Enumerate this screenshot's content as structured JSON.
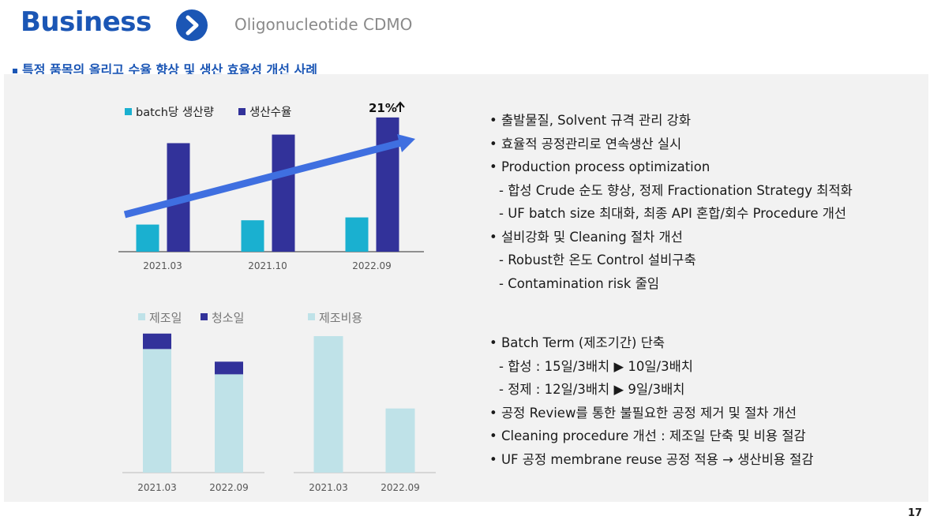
{
  "header": {
    "title": "Business",
    "subtitle": "Oligonucleotide CDMO"
  },
  "section_title": "특정 품목의 올리고 수율 향상 및 생산 효율성 개선 사례",
  "page_number": "17",
  "colors": {
    "brand": "#1b56b5",
    "cyan": "#1ab0d0",
    "navy": "#32329a",
    "light_cyan": "#bfe2e8",
    "arrow": "#3f6fe0"
  },
  "chart_data": [
    {
      "type": "bar",
      "categories": [
        "2021.03",
        "2021.10",
        "2022.09"
      ],
      "series": [
        {
          "name": "batch당 생산량",
          "values": [
            19,
            22,
            24
          ]
        },
        {
          "name": "생산수율",
          "values": [
            76,
            82,
            94
          ]
        }
      ],
      "ylim": [
        0,
        100
      ],
      "annotation": "21%",
      "trend_arrow": true
    },
    {
      "type": "bar",
      "stacked": true,
      "categories": [
        "2021.03",
        "2022.09"
      ],
      "series": [
        {
          "name": "제조일",
          "values": [
            88,
            70
          ]
        },
        {
          "name": "청소일",
          "values": [
            11,
            9
          ]
        }
      ],
      "ylim": [
        0,
        100
      ]
    },
    {
      "type": "bar",
      "categories": [
        "2021.03",
        "2022.09"
      ],
      "series": [
        {
          "name": "제조비용",
          "values": [
            100,
            47
          ]
        }
      ],
      "ylim": [
        0,
        100
      ]
    }
  ],
  "bullets_top": [
    {
      "text": "• 출발물질, Solvent 규격 관리 강화",
      "sub": false
    },
    {
      "text": "• 효율적 공정관리로 연속생산 실시",
      "sub": false
    },
    {
      "text": "• Production process optimization",
      "sub": false
    },
    {
      "text": "- 합성 Crude 순도 향상, 정제 Fractionation Strategy 최적화",
      "sub": true
    },
    {
      "text": "- UF batch size 최대화, 최종 API 혼합/회수 Procedure 개선",
      "sub": true
    },
    {
      "text": "• 설비강화 및 Cleaning 절차 개선",
      "sub": false
    },
    {
      "text": "- Robust한 온도 Control 설비구축",
      "sub": true
    },
    {
      "text": "- Contamination risk 줄임",
      "sub": true
    }
  ],
  "bullets_bottom": [
    {
      "text": "• Batch Term (제조기간) 단축",
      "sub": false
    },
    {
      "text": "- 합성 : 15일/3배치 ▶ 10일/3배치",
      "sub": true
    },
    {
      "text": "- 정제 : 12일/3배치 ▶ 9일/3배치",
      "sub": true
    },
    {
      "text": "• 공정 Review를 통한 불필요한 공정 제거 및 절차 개선",
      "sub": false
    },
    {
      "text": "• Cleaning procedure 개선 : 제조일 단축 및 비용 절감",
      "sub": false
    },
    {
      "text": "• UF 공정 membrane reuse 공정 적용 → 생산비용 절감",
      "sub": false
    }
  ]
}
